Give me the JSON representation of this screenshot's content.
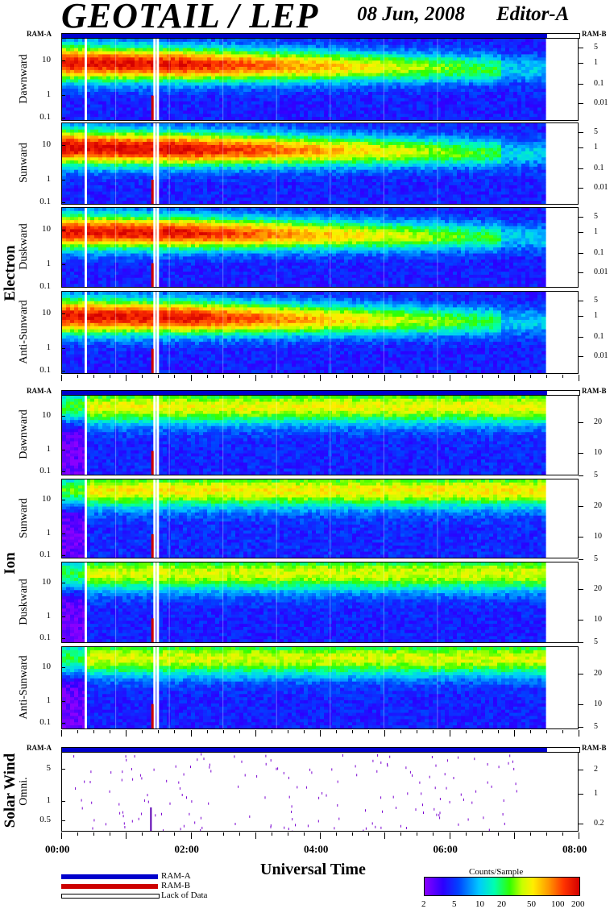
{
  "header": {
    "title": "GEOTAIL / LEP",
    "date": "08 Jun, 2008",
    "editor": "Editor-A"
  },
  "groups": [
    {
      "label": "Electron",
      "panels": [
        "Dawnward",
        "Sunward",
        "Duskward",
        "Anti-Sunward"
      ],
      "left_ticks": [
        "10",
        "1",
        "0.1"
      ],
      "right_ticks": [
        "5",
        "1",
        "0.1",
        "0.01"
      ]
    },
    {
      "label": "Ion",
      "panels": [
        "Dawnward",
        "Sunward",
        "Duskward",
        "Anti-Sunward"
      ],
      "left_ticks": [
        "10",
        "1",
        "0.1"
      ],
      "right_ticks": [
        "20",
        "10",
        "5"
      ]
    },
    {
      "label": "Solar Wind",
      "panels": [
        "Omni."
      ],
      "left_ticks": [
        "5",
        "1",
        "0.5"
      ],
      "right_ticks": [
        "2",
        "1",
        "0.2"
      ]
    }
  ],
  "ram": {
    "a": "RAM-A",
    "b": "RAM-B"
  },
  "xaxis": {
    "label": "Universal Time",
    "ticks": [
      "00:00",
      "02:00",
      "04:00",
      "06:00",
      "08:00"
    ]
  },
  "legend": {
    "ram_a": "RAM-A",
    "ram_b": "RAM-B",
    "lack": "Lack of Data",
    "colors": {
      "ram_a": "#0000cc",
      "ram_b": "#cc0000"
    }
  },
  "colorbar": {
    "title": "Counts/Sample",
    "ticks": [
      "2",
      "5",
      "10",
      "20",
      "50",
      "100",
      "200"
    ]
  },
  "chart_data": {
    "type": "heatmap",
    "title": "GEOTAIL / LEP",
    "xlabel": "Universal Time",
    "xlim": [
      "00:00",
      "08:00"
    ],
    "data_end": "07:30",
    "colorbar": {
      "label": "Counts/Sample",
      "range": [
        2,
        200
      ],
      "scale": "log"
    },
    "data_gaps_utc": [
      "00:21",
      "01:25",
      "01:28"
    ],
    "panels": [
      {
        "group": "Electron",
        "name": "Dawnward",
        "yscale": "log",
        "ylim": [
          0.08,
          30
        ],
        "peak_counts": 150
      },
      {
        "group": "Electron",
        "name": "Sunward",
        "yscale": "log",
        "ylim": [
          0.08,
          30
        ],
        "peak_counts": 170
      },
      {
        "group": "Electron",
        "name": "Duskward",
        "yscale": "log",
        "ylim": [
          0.08,
          30
        ],
        "peak_counts": 150
      },
      {
        "group": "Electron",
        "name": "Anti-Sunward",
        "yscale": "log",
        "ylim": [
          0.08,
          30
        ],
        "peak_counts": 150
      },
      {
        "group": "Ion",
        "name": "Dawnward",
        "yscale": "log",
        "ylim": [
          0.08,
          40
        ],
        "peak_counts": 40
      },
      {
        "group": "Ion",
        "name": "Sunward",
        "yscale": "log",
        "ylim": [
          0.08,
          40
        ],
        "peak_counts": 45
      },
      {
        "group": "Ion",
        "name": "Duskward",
        "yscale": "log",
        "ylim": [
          0.08,
          40
        ],
        "peak_counts": 35
      },
      {
        "group": "Ion",
        "name": "Anti-Sunward",
        "yscale": "log",
        "ylim": [
          0.08,
          40
        ],
        "peak_counts": 35
      },
      {
        "group": "Solar Wind",
        "name": "Omni.",
        "yscale": "log",
        "ylim": [
          0.2,
          10
        ],
        "peak_counts": 3
      }
    ]
  }
}
